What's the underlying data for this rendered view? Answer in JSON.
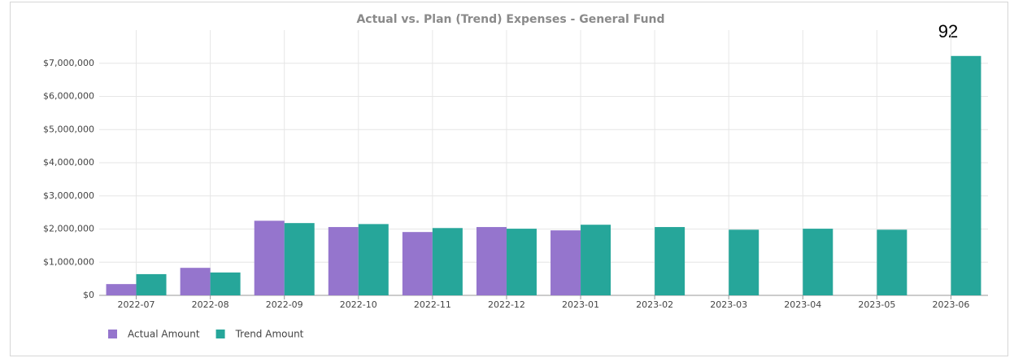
{
  "chart_data": {
    "type": "bar",
    "title": "Actual vs. Plan (Trend) Expenses - General Fund",
    "annotation": "92",
    "categories": [
      "2022-07",
      "2022-08",
      "2022-09",
      "2022-10",
      "2022-11",
      "2022-12",
      "2023-01",
      "2023-02",
      "2023-03",
      "2023-04",
      "2023-05",
      "2023-06"
    ],
    "series": [
      {
        "name": "Actual Amount",
        "color": "#9575cd",
        "values": [
          340000,
          830000,
          2250000,
          2060000,
          1910000,
          2060000,
          1960000,
          null,
          null,
          null,
          null,
          null
        ]
      },
      {
        "name": "Trend Amount",
        "color": "#26a69a",
        "values": [
          640000,
          690000,
          2180000,
          2150000,
          2030000,
          2010000,
          2130000,
          2060000,
          1980000,
          2010000,
          1980000,
          7220000
        ]
      }
    ],
    "ylim": [
      0,
      8000000
    ],
    "yticks": [
      {
        "value": 0,
        "label": "$0"
      },
      {
        "value": 1000000,
        "label": "$1,000,000"
      },
      {
        "value": 2000000,
        "label": "$2,000,000"
      },
      {
        "value": 3000000,
        "label": "$3,000,000"
      },
      {
        "value": 4000000,
        "label": "$4,000,000"
      },
      {
        "value": 5000000,
        "label": "$5,000,000"
      },
      {
        "value": 6000000,
        "label": "$6,000,000"
      },
      {
        "value": 7000000,
        "label": "$7,000,000"
      }
    ],
    "grid": true,
    "legend": "bottom-left"
  }
}
